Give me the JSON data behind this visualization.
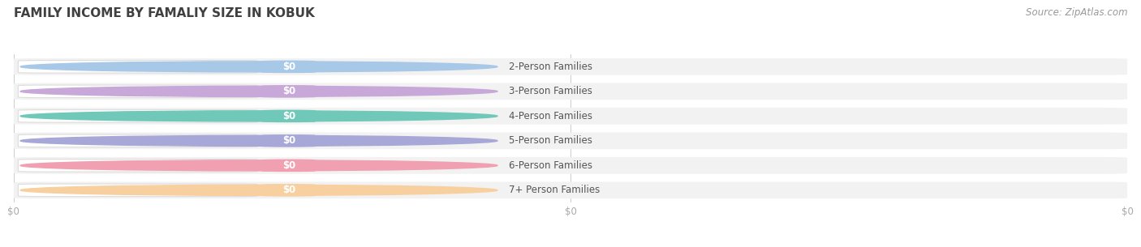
{
  "title": "FAMILY INCOME BY FAMALIY SIZE IN KOBUK",
  "source": "Source: ZipAtlas.com",
  "categories": [
    "2-Person Families",
    "3-Person Families",
    "4-Person Families",
    "5-Person Families",
    "6-Person Families",
    "7+ Person Families"
  ],
  "values": [
    0,
    0,
    0,
    0,
    0,
    0
  ],
  "bar_colors": [
    "#a8c8e8",
    "#c8a8d8",
    "#70c8b8",
    "#a8a8d8",
    "#f0a0b0",
    "#f8d0a0"
  ],
  "bar_bg_color": "#f2f2f2",
  "background_color": "#ffffff",
  "title_color": "#404040",
  "source_color": "#999999",
  "label_text_color": "#555555",
  "value_text_color": "#ffffff",
  "tick_label_color": "#aaaaaa",
  "grid_color": "#cccccc",
  "xlim": [
    0,
    1
  ],
  "title_fontsize": 11,
  "source_fontsize": 8.5,
  "label_fontsize": 8.5,
  "value_fontsize": 8.5,
  "tick_fontsize": 8.5,
  "x_ticks": [
    0,
    0.5,
    1.0
  ],
  "x_tick_labels": [
    "$0",
    "$0",
    "$0"
  ]
}
